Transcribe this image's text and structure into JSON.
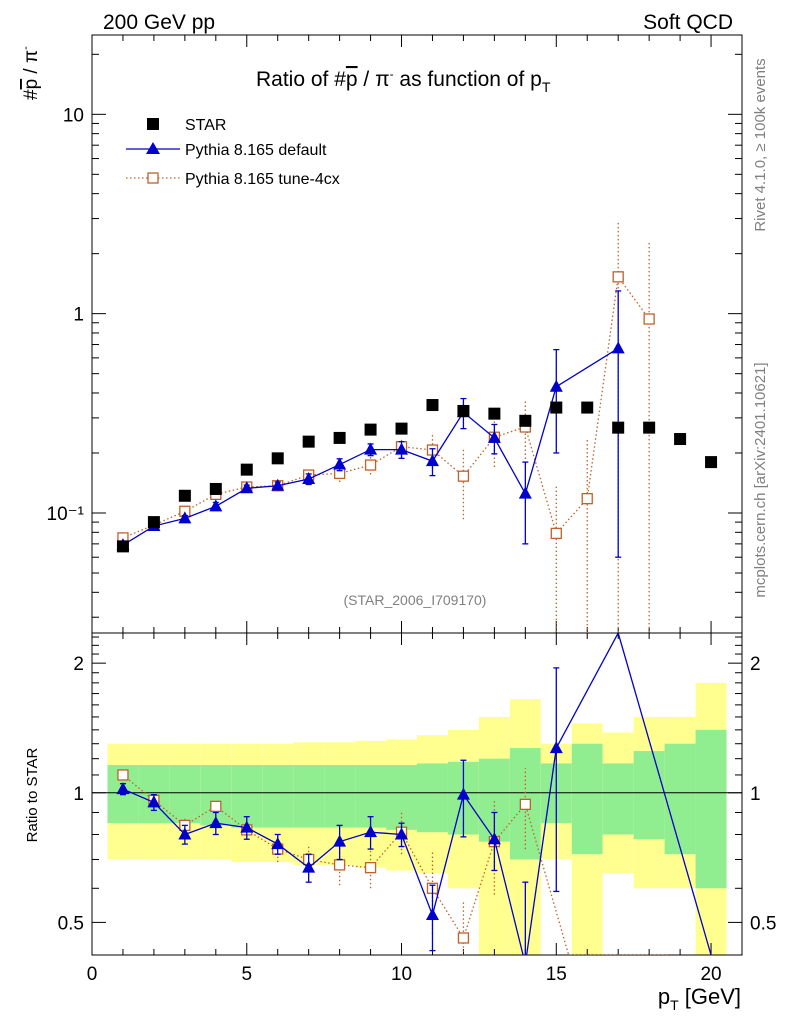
{
  "header": {
    "left": "200 GeV pp",
    "right": "Soft QCD"
  },
  "side_labels": {
    "rivet": "Rivet 4.1.0, ≥ 100k events",
    "mcplots": "mcplots.cern.ch [arXiv:2401.10621]"
  },
  "colors": {
    "star": "#000000",
    "pythia_default": "#0000cc",
    "pythia_tune": "#c0602a",
    "band_inner": "#90ee90",
    "band_outer": "#ffff90"
  },
  "chart_data": [
    {
      "id": "main",
      "type": "scatter",
      "title": "Ratio of #p̅ / π⁻ as function of p_T",
      "title_parts": {
        "prefix": "Ratio of #",
        "pbar": "p",
        "mid": " / π",
        "minus": "-",
        "suffix": " as function of p",
        "sub": "T"
      },
      "ylabel": {
        "prefix": "#",
        "pbar": "p",
        "mid": " / π",
        "minus": "-"
      },
      "yscale": "log",
      "ylim": [
        0.025,
        25
      ],
      "xlim": [
        0,
        21
      ],
      "y_tick_labels": [
        {
          "value": 10,
          "text": "10"
        },
        {
          "value": 1,
          "text": "1"
        },
        {
          "value": 0.1,
          "text": "10⁻¹"
        }
      ],
      "watermark": "(STAR_2006_I709170)",
      "legend_position": "top-left",
      "series": [
        {
          "name": "STAR",
          "marker": "filled-square",
          "x": [
            1,
            2,
            3,
            4,
            5,
            6,
            7,
            8,
            9,
            10,
            11,
            12,
            13,
            14,
            15,
            16,
            17,
            18,
            19,
            20
          ],
          "y": [
            0.068,
            0.09,
            0.122,
            0.132,
            0.165,
            0.188,
            0.228,
            0.238,
            0.262,
            0.265,
            0.348,
            0.325,
            0.315,
            0.29,
            0.338,
            0.338,
            0.268,
            0.268,
            0.235,
            0.18
          ]
        },
        {
          "name": "Pythia 8.165 default",
          "marker": "filled-triangle",
          "line": "solid",
          "x": [
            1,
            2,
            3,
            4,
            5,
            6,
            7,
            8,
            9,
            10,
            11,
            12,
            13,
            14,
            15,
            17
          ],
          "y": [
            0.069,
            0.086,
            0.094,
            0.108,
            0.133,
            0.137,
            0.148,
            0.175,
            0.208,
            0.208,
            0.182,
            0.32,
            0.238,
            0.125,
            0.43,
            0.67
          ],
          "y_err_low": [
            0.003,
            0.003,
            0.003,
            0.005,
            0.005,
            0.006,
            0.009,
            0.012,
            0.014,
            0.02,
            0.028,
            0.055,
            0.04,
            0.055,
            0.23,
            0.61
          ],
          "y_err_high": [
            0.003,
            0.003,
            0.003,
            0.005,
            0.005,
            0.006,
            0.009,
            0.012,
            0.014,
            0.02,
            0.028,
            0.055,
            0.04,
            0.055,
            0.23,
            0.63
          ]
        },
        {
          "name": "Pythia 8.165 tune-4cx",
          "marker": "open-square",
          "line": "dotted",
          "x": [
            1,
            2,
            3,
            4,
            5,
            6,
            7,
            8,
            9,
            10,
            11,
            12,
            13,
            14,
            15,
            16,
            17,
            18
          ],
          "y": [
            0.075,
            0.087,
            0.102,
            0.124,
            0.135,
            0.137,
            0.155,
            0.158,
            0.174,
            0.215,
            0.207,
            0.153,
            0.24,
            0.27,
            0.079,
            0.118,
            1.53,
            0.94
          ],
          "y_err_low": [
            0.003,
            0.003,
            0.004,
            0.005,
            0.006,
            0.007,
            0.01,
            0.015,
            0.018,
            0.025,
            0.04,
            0.06,
            0.07,
            0.1,
            0.058,
            0.1,
            1.52,
            0.93
          ],
          "y_err_high": [
            0.003,
            0.003,
            0.004,
            0.005,
            0.006,
            0.007,
            0.01,
            0.015,
            0.018,
            0.025,
            0.04,
            0.06,
            0.07,
            0.1,
            0.06,
            0.12,
            1.37,
            1.36
          ]
        }
      ]
    },
    {
      "id": "ratio",
      "type": "scatter",
      "ylabel": "Ratio to STAR",
      "xlabel": "p_T [GeV]",
      "xlabel_parts": {
        "p": "p",
        "sub": "T",
        "unit": " [GeV]"
      },
      "yscale": "log",
      "ylim": [
        0.42,
        2.35
      ],
      "xlim": [
        0,
        21
      ],
      "x_ticks": [
        0,
        5,
        10,
        15,
        20
      ],
      "y_tick_labels": [
        {
          "value": 2,
          "text": "2"
        },
        {
          "value": 1,
          "text": "1"
        },
        {
          "value": 0.5,
          "text": "0.5"
        }
      ],
      "bands": {
        "bin_edges": [
          0.5,
          1.5,
          2.5,
          3.5,
          4.5,
          5.5,
          6.5,
          7.5,
          8.5,
          9.5,
          10.5,
          11.5,
          12.5,
          13.5,
          14.5,
          15.5,
          16.5,
          17.5,
          18.5,
          19.5,
          20.5
        ],
        "inner": [
          [
            0.85,
            1.16
          ],
          [
            0.85,
            1.16
          ],
          [
            0.85,
            1.16
          ],
          [
            0.84,
            1.16
          ],
          [
            0.83,
            1.16
          ],
          [
            0.83,
            1.16
          ],
          [
            0.83,
            1.16
          ],
          [
            0.83,
            1.16
          ],
          [
            0.83,
            1.16
          ],
          [
            0.82,
            1.16
          ],
          [
            0.81,
            1.17
          ],
          [
            0.8,
            1.18
          ],
          [
            0.77,
            1.2
          ],
          [
            0.7,
            1.27
          ],
          [
            0.85,
            1.17
          ],
          [
            0.72,
            1.3
          ],
          [
            0.8,
            1.17
          ],
          [
            0.78,
            1.25
          ],
          [
            0.72,
            1.3
          ],
          [
            0.6,
            1.4
          ]
        ],
        "outer": [
          [
            0.7,
            1.3
          ],
          [
            0.7,
            1.3
          ],
          [
            0.7,
            1.3
          ],
          [
            0.7,
            1.3
          ],
          [
            0.69,
            1.3
          ],
          [
            0.69,
            1.3
          ],
          [
            0.68,
            1.31
          ],
          [
            0.68,
            1.31
          ],
          [
            0.67,
            1.32
          ],
          [
            0.66,
            1.33
          ],
          [
            0.65,
            1.36
          ],
          [
            0.6,
            1.4
          ],
          [
            0.42,
            1.5
          ],
          [
            0.42,
            1.65
          ],
          [
            0.7,
            1.3
          ],
          [
            0.42,
            1.45
          ],
          [
            0.65,
            1.38
          ],
          [
            0.6,
            1.5
          ],
          [
            0.6,
            1.5
          ],
          [
            0.42,
            1.8
          ]
        ]
      },
      "series": [
        {
          "name": "Pythia 8.165 default",
          "marker": "filled-triangle",
          "line": "solid",
          "x": [
            1,
            2,
            3,
            4,
            5,
            6,
            7,
            8,
            9,
            10,
            11,
            12,
            13,
            14,
            15,
            17,
            20
          ],
          "y": [
            1.02,
            0.95,
            0.8,
            0.85,
            0.83,
            0.76,
            0.67,
            0.77,
            0.81,
            0.8,
            0.52,
            0.99,
            0.78,
            0.4,
            1.27,
            2.35,
            0.42
          ],
          "y_err": [
            0.03,
            0.04,
            0.04,
            0.05,
            0.05,
            0.04,
            0.05,
            0.07,
            0.07,
            0.05,
            0.09,
            0.2,
            0.12,
            0.22,
            0.68,
            0,
            0
          ],
          "markers_drawn": 15
        },
        {
          "name": "Pythia 8.165 tune-4cx",
          "marker": "open-square",
          "line": "dotted",
          "x": [
            1,
            2,
            3,
            4,
            5,
            6,
            7,
            8,
            9,
            10,
            11,
            12,
            13,
            14,
            15.4,
            16.6,
            18.6
          ],
          "y": [
            1.1,
            0.96,
            0.84,
            0.93,
            0.82,
            0.74,
            0.7,
            0.68,
            0.67,
            0.81,
            0.6,
            0.46,
            0.77,
            0.94,
            0.42,
            0.42,
            0.42
          ],
          "y_err": [
            0.03,
            0.03,
            0.03,
            0.04,
            0.04,
            0.05,
            0.06,
            0.07,
            0.07,
            0.09,
            0.13,
            0.1,
            0.19,
            0.2,
            0,
            0,
            0
          ],
          "markers_drawn": 14
        }
      ]
    }
  ]
}
